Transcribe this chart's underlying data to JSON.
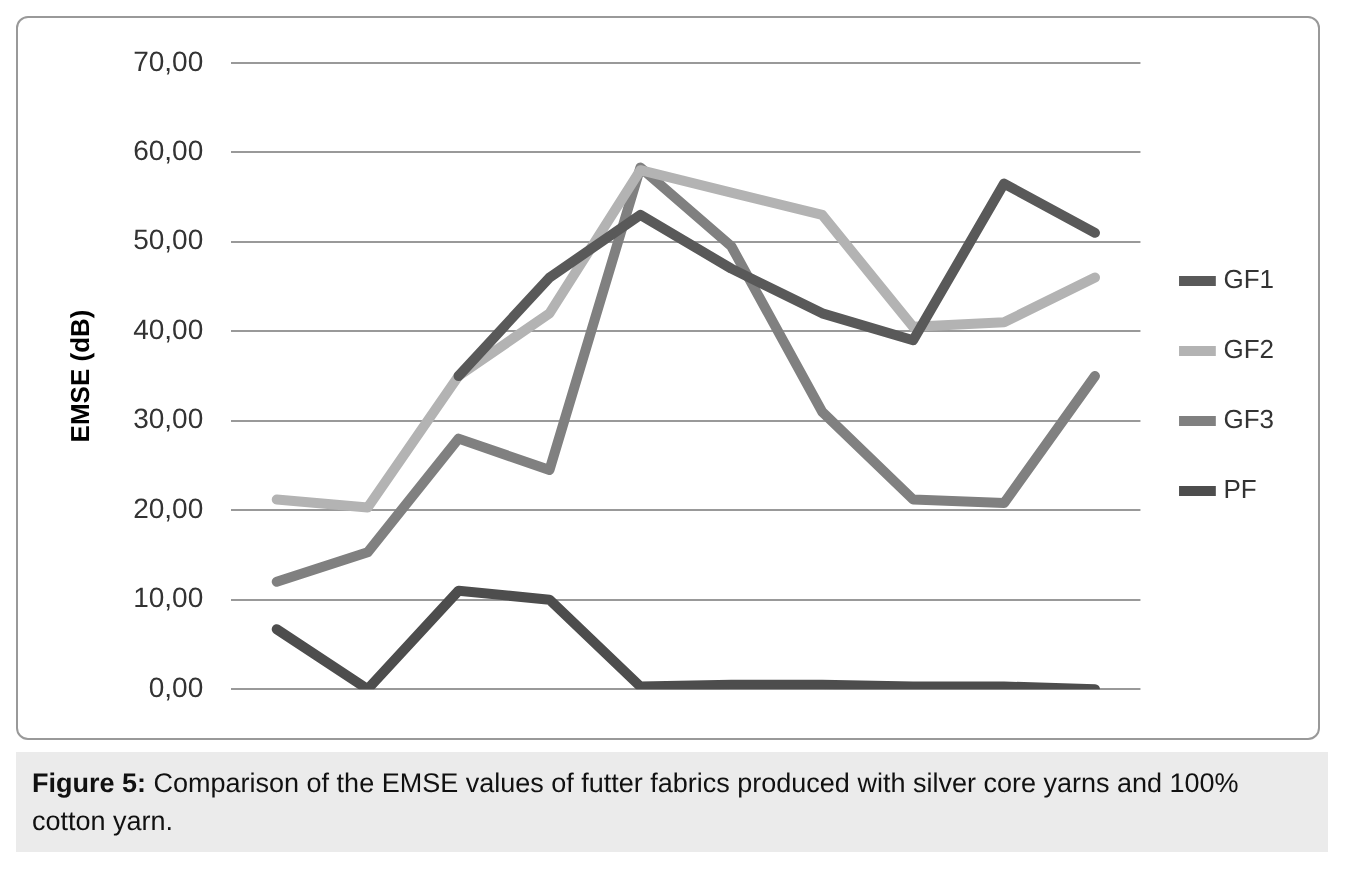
{
  "chart_data": {
    "type": "line",
    "ylabel": "EMSE (dB)",
    "categories": [
      null,
      null,
      null,
      null,
      null,
      null,
      null,
      null,
      null,
      null
    ],
    "series": [
      {
        "name": "GF1",
        "color": "#595959",
        "values": [
          null,
          null,
          35,
          46,
          53,
          47,
          42,
          39,
          56.5,
          51
        ]
      },
      {
        "name": "GF2",
        "color": "#b3b3b3",
        "values": [
          21.2,
          20.3,
          35,
          42,
          58,
          55.5,
          53,
          40.5,
          41,
          46
        ]
      },
      {
        "name": "GF3",
        "color": "#808080",
        "values": [
          12,
          15.3,
          28,
          24.5,
          58.3,
          49.5,
          31,
          21.2,
          20.8,
          35
        ]
      },
      {
        "name": "PF",
        "color": "#4d4d4d",
        "values": [
          6.7,
          0,
          11,
          10,
          0.3,
          0.5,
          0.5,
          0.3,
          0.3,
          0
        ]
      }
    ],
    "ylim": [
      0,
      70
    ],
    "yticks": [
      {
        "value": 0,
        "label": "0,00"
      },
      {
        "value": 10,
        "label": "10,00"
      },
      {
        "value": 20,
        "label": "20,00"
      },
      {
        "value": 30,
        "label": "30,00"
      },
      {
        "value": 40,
        "label": "40,00"
      },
      {
        "value": 50,
        "label": "50,00"
      },
      {
        "value": 60,
        "label": "60,00"
      },
      {
        "value": 70,
        "label": "70,00"
      }
    ],
    "grid": "y",
    "legend": "right",
    "marker": "none",
    "line_style": "solid",
    "annotations": [
      "Figure 5: Comparison of the EMSE values of futter fabrics produced with silver core yarns and 100% cotton yarn."
    ]
  }
}
